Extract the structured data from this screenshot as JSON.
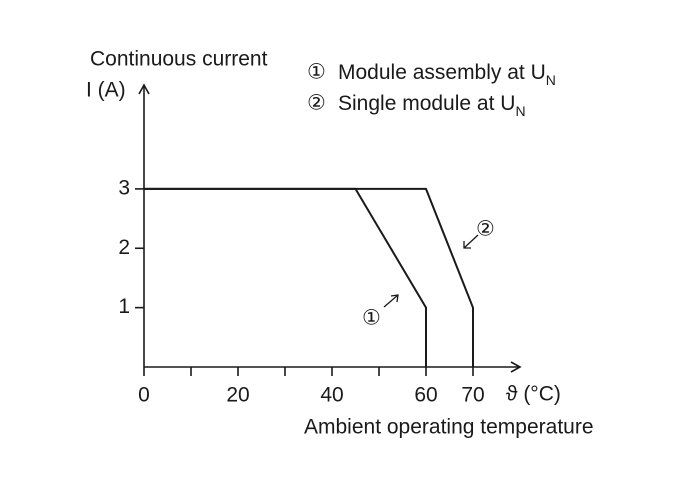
{
  "chart_data": {
    "type": "line",
    "y_label_lines": [
      "Continuous current",
      "I (A)"
    ],
    "x_label": "Ambient operating temperature",
    "x_unit": "ϑ (°C)",
    "series": [
      {
        "marker": "①",
        "name": "Module assembly at U",
        "name_subscript": "N",
        "color": "#1a1a1a",
        "x": [
          0,
          45,
          60,
          60
        ],
        "values": [
          3,
          3,
          1,
          0
        ]
      },
      {
        "marker": "②",
        "name": "Single module at U",
        "name_subscript": "N",
        "color": "#1a1a1a",
        "x": [
          0,
          60,
          70,
          70
        ],
        "values": [
          3,
          3,
          1,
          0
        ]
      }
    ],
    "xlim": [
      0,
      80
    ],
    "ylim": [
      0,
      4.75
    ],
    "xticks": [
      0,
      20,
      40,
      60,
      70
    ],
    "xminor_ticks": [
      10,
      30,
      50
    ],
    "yticks": [
      1,
      2,
      3
    ]
  }
}
